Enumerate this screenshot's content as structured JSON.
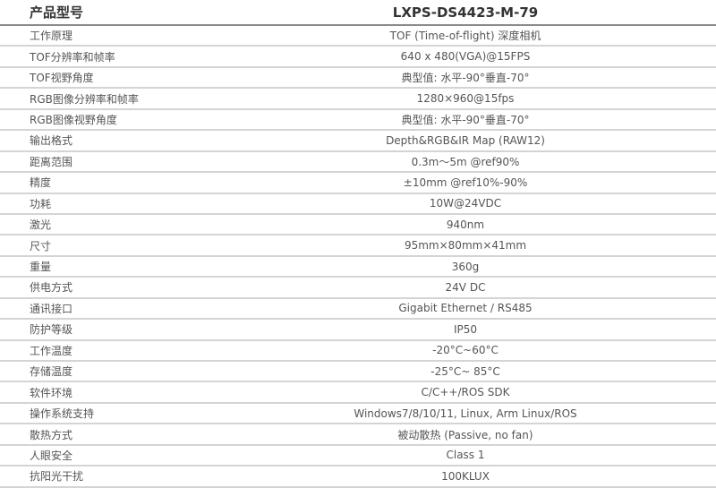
{
  "header": {
    "label": "产品型号",
    "value": "LXPS-DS4423-M-79"
  },
  "rows": [
    {
      "label": "工作原理",
      "value": "TOF (Time-of-flight)  深度相机"
    },
    {
      "label": "TOF分辨率和帧率",
      "value": "640 x 480(VGA)@15FPS"
    },
    {
      "label": "TOF视野角度",
      "value": "典型值: 水平-90°垂直-70°"
    },
    {
      "label": "RGB图像分辨率和帧率",
      "value": "1280×960@15fps"
    },
    {
      "label": "RGB图像视野角度",
      "value": "典型值: 水平-90°垂直-70°"
    },
    {
      "label": "输出格式",
      "value": "Depth&RGB&IR Map (RAW12)"
    },
    {
      "label": "距离范围",
      "value": "0.3m～5m @ref90%"
    },
    {
      "label": "精度",
      "value": "±10mm @ref10%-90%"
    },
    {
      "label": "功耗",
      "value": "10W@24VDC"
    },
    {
      "label": "激光",
      "value": "940nm"
    },
    {
      "label": "尺寸",
      "value": "95mm×80mm×41mm"
    },
    {
      "label": "重量",
      "value": "360g"
    },
    {
      "label": "供电方式",
      "value": "24V DC"
    },
    {
      "label": "通讯接口",
      "value": "Gigabit Ethernet / RS485"
    },
    {
      "label": "防护等级",
      "value": "IP50"
    },
    {
      "label": "工作温度",
      "value": "-20°C~60°C"
    },
    {
      "label": "存储温度",
      "value": "-25°C~ 85°C"
    },
    {
      "label": "软件环境",
      "value": "C/C++/ROS SDK"
    },
    {
      "label": "操作系统支持",
      "value": "Windows7/8/10/11, Linux, Arm Linux/ROS"
    },
    {
      "label": "散热方式",
      "value": "被动散热 (Passive, no fan)"
    },
    {
      "label": "人眼安全",
      "value": "Class 1"
    },
    {
      "label": "抗阳光干扰",
      "value": "100KLUX"
    }
  ]
}
